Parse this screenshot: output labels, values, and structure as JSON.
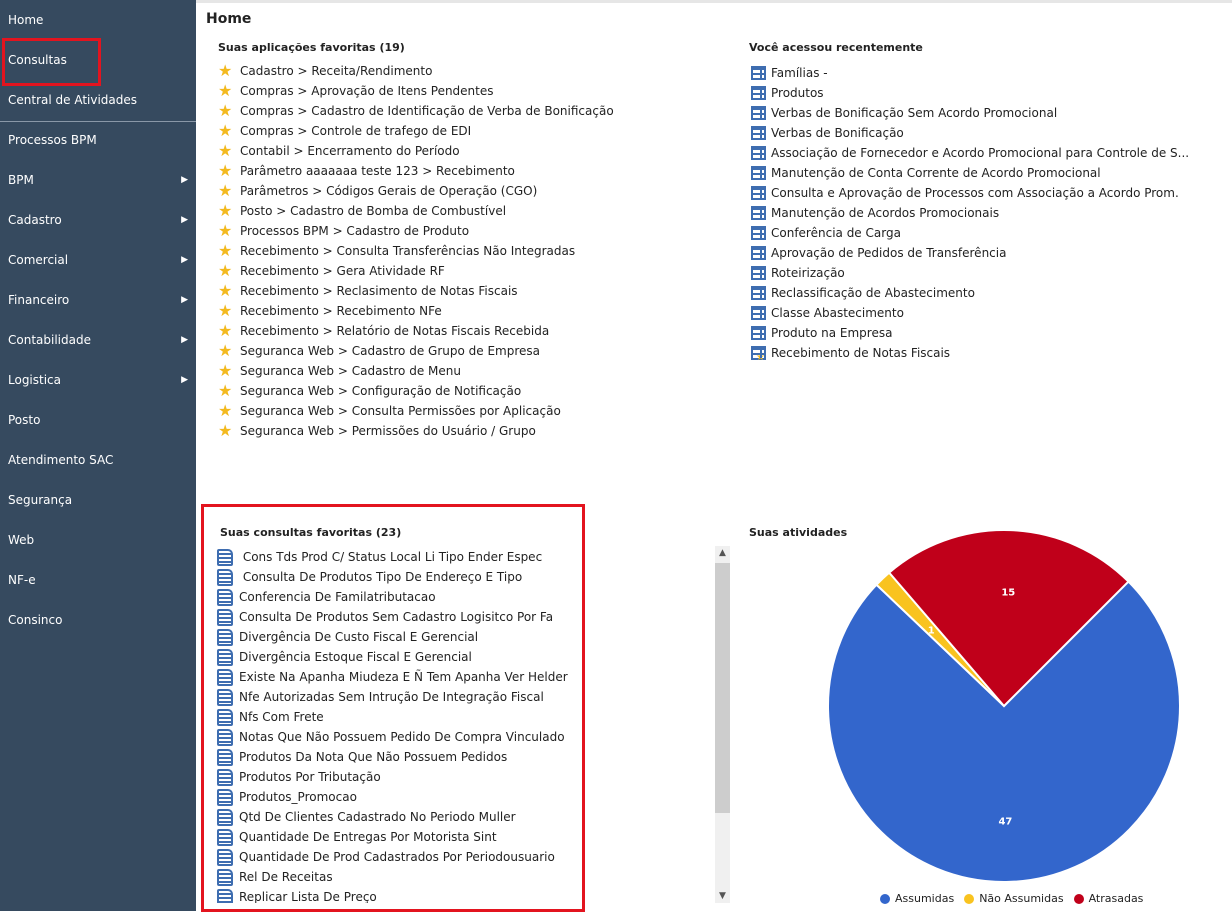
{
  "sidebar": {
    "items": [
      {
        "label": "Home",
        "arrow": false
      },
      {
        "label": "Consultas",
        "arrow": false
      },
      {
        "label": "Central de Atividades",
        "arrow": false
      },
      {
        "label": "Processos BPM",
        "arrow": false
      },
      {
        "label": "BPM",
        "arrow": true
      },
      {
        "label": "Cadastro",
        "arrow": true
      },
      {
        "label": "Comercial",
        "arrow": true
      },
      {
        "label": "Financeiro",
        "arrow": true
      },
      {
        "label": "Contabilidade",
        "arrow": true
      },
      {
        "label": "Logistica",
        "arrow": true
      },
      {
        "label": "Posto",
        "arrow": false
      },
      {
        "label": "Atendimento SAC",
        "arrow": false
      },
      {
        "label": "Segurança",
        "arrow": false
      },
      {
        "label": "Web",
        "arrow": false
      },
      {
        "label": "NF-e",
        "arrow": false
      },
      {
        "label": "Consinco",
        "arrow": false
      }
    ]
  },
  "main": {
    "title": "Home",
    "favorite_apps": {
      "title": "Suas aplicações favoritas (19)",
      "items": [
        "Cadastro > Receita/Rendimento",
        "Compras > Aprovação de Itens Pendentes",
        "Compras > Cadastro de Identificação de Verba de Bonificação",
        "Compras > Controle de trafego de EDI",
        "Contabil > Encerramento do Período",
        "Parâmetro aaaaaaa teste 123 > Recebimento",
        "Parâmetros > Códigos Gerais de Operação (CGO)",
        "Posto > Cadastro de Bomba de Combustível",
        "Processos BPM > Cadastro de Produto",
        "Recebimento > Consulta Transferências Não Integradas",
        "Recebimento > Gera Atividade RF",
        "Recebimento > Reclasimento de Notas Fiscais",
        "Recebimento > Recebimento NFe",
        "Recebimento > Relatório de Notas Fiscais Recebida",
        "Seguranca Web > Cadastro de Grupo de Empresa",
        "Seguranca Web > Cadastro de Menu",
        "Seguranca Web > Configuração de Notificação",
        "Seguranca Web > Consulta Permissões por Aplicação",
        "Seguranca Web > Permissões do Usuário / Grupo"
      ]
    },
    "recent": {
      "title": "Você acessou recentemente",
      "items": [
        "Famílias -",
        "Produtos",
        "Verbas de Bonificação Sem Acordo Promocional",
        "Verbas de Bonificação",
        "Associação de Fornecedor e Acordo Promocional para Controle de S...",
        "Manutenção de Conta Corrente de Acordo Promocional",
        "Consulta e Aprovação de Processos com Associação a Acordo Prom.",
        "Manutenção de Acordos Promocionais",
        "Conferência de Carga",
        "Aprovação de Pedidos de Transferência",
        "Roteirização",
        "Reclassificação de Abastecimento",
        "Classe Abastecimento",
        "Produto na Empresa",
        "Recebimento de Notas Fiscais"
      ]
    },
    "favorite_queries": {
      "title": "Suas consultas favoritas (23)",
      "items": [
        " Cons Tds Prod C/ Status Local Li Tipo Ender Espec",
        " Consulta De Produtos Tipo De Endereço E Tipo",
        "Conferencia De Familatributacao",
        "Consulta De Produtos Sem Cadastro Logisitco Por Fa",
        "Divergência De Custo Fiscal E Gerencial",
        "Divergência Estoque Fiscal E Gerencial",
        "Existe Na Apanha Miudeza E Ñ Tem Apanha Ver Helder",
        "Nfe Autorizadas Sem Intrução De Integração Fiscal",
        "Nfs Com Frete",
        "Notas Que Não Possuem Pedido De Compra Vinculado",
        "Produtos Da Nota Que Não Possuem Pedidos",
        "Produtos Por Tributação",
        "Produtos_Promocao",
        "Qtd De Clientes Cadastrado No Periodo Muller",
        "Quantidade De Entregas Por Motorista Sint",
        "Quantidade De Prod Cadastrados Por Periodousuario",
        "Rel De Receitas",
        "Replicar Lista De Preço"
      ]
    },
    "activities": {
      "title": "Suas atividades"
    }
  },
  "chart_data": {
    "type": "pie",
    "title": "Suas atividades",
    "legend": "bottom",
    "slices": [
      {
        "name": "Assumidas",
        "value": 47,
        "color": "#3366cc"
      },
      {
        "name": "Não Assumidas",
        "value": 1,
        "color": "#f9c31f"
      },
      {
        "name": "Atrasadas",
        "value": 15,
        "color": "#c0001a"
      }
    ]
  }
}
